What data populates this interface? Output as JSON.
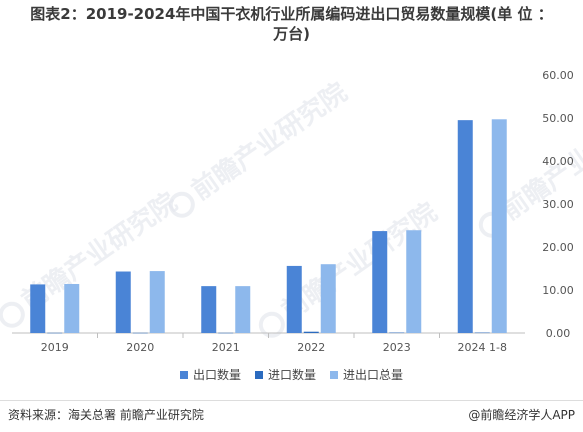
{
  "title": {
    "line1": "图表2：2019-2024年中国干衣机行业所属编码进出口贸易数量规模(单 位 ：",
    "line2": "万台)"
  },
  "watermark_text": "前瞻产业研究院",
  "colors": {
    "export": "#4a84d6",
    "import": "#2b6bbf",
    "total": "#8db8ec",
    "axis_text": "#555555",
    "grid": "#d9d9d9"
  },
  "chart_data": {
    "type": "bar",
    "categories": [
      "2019",
      "2020",
      "2021",
      "2022",
      "2023",
      "2024 1-8"
    ],
    "series": [
      {
        "name": "出口数量",
        "values": [
          11.3,
          14.3,
          10.9,
          15.6,
          23.7,
          49.5
        ]
      },
      {
        "name": "进口数量",
        "values": [
          0.05,
          0.05,
          0.05,
          0.3,
          0.1,
          0.1
        ]
      },
      {
        "name": "进出口总量",
        "values": [
          11.4,
          14.4,
          10.9,
          16.0,
          23.9,
          49.7
        ]
      }
    ],
    "ylim": [
      0,
      60
    ],
    "yticks": [
      "0.00",
      "10.00",
      "20.00",
      "30.00",
      "40.00",
      "50.00",
      "60.00"
    ],
    "ytick_values": [
      0,
      10,
      20,
      30,
      40,
      50,
      60
    ],
    "legend_position": "bottom",
    "grid": false
  },
  "footer": {
    "source": "资料来源：海关总署 前瞻产业研究院",
    "brand": "@前瞻经济学人APP"
  }
}
